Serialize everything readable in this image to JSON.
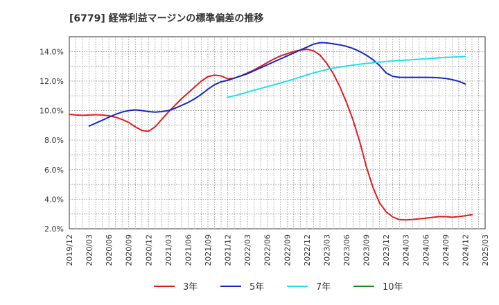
{
  "chart_data": {
    "type": "line",
    "title": "[6779]  経常利益マージンの標準偏差の推移",
    "xlabel": "",
    "ylabel": "",
    "ylim": [
      2.0,
      15.0
    ],
    "y_ticks": [
      "2.0%",
      "4.0%",
      "6.0%",
      "8.0%",
      "10.0%",
      "12.0%",
      "14.0%"
    ],
    "y_tick_values": [
      2,
      4,
      6,
      8,
      10,
      12,
      14
    ],
    "x_ticks": [
      "2019/12",
      "2020/03",
      "2020/06",
      "2020/09",
      "2020/12",
      "2021/03",
      "2021/06",
      "2021/09",
      "2021/12",
      "2022/03",
      "2022/06",
      "2022/09",
      "2022/12",
      "2023/03",
      "2023/06",
      "2023/09",
      "2023/12",
      "2024/03",
      "2024/06",
      "2024/09",
      "2024/12",
      "2025/03"
    ],
    "grid": true,
    "legend_position": "bottom",
    "series": [
      {
        "name": "3年",
        "color": "#e31a1c",
        "points": [
          [
            "2019/12",
            9.75
          ],
          [
            "2020/01",
            9.7
          ],
          [
            "2020/02",
            9.68
          ],
          [
            "2020/03",
            9.7
          ],
          [
            "2020/04",
            9.72
          ],
          [
            "2020/05",
            9.7
          ],
          [
            "2020/06",
            9.65
          ],
          [
            "2020/07",
            9.55
          ],
          [
            "2020/08",
            9.4
          ],
          [
            "2020/09",
            9.2
          ],
          [
            "2020/10",
            8.9
          ],
          [
            "2020/11",
            8.65
          ],
          [
            "2020/12",
            8.6
          ],
          [
            "2021/01",
            8.9
          ],
          [
            "2021/02",
            9.4
          ],
          [
            "2021/03",
            9.9
          ],
          [
            "2021/04",
            10.35
          ],
          [
            "2021/05",
            10.8
          ],
          [
            "2021/06",
            11.2
          ],
          [
            "2021/07",
            11.6
          ],
          [
            "2021/08",
            12.0
          ],
          [
            "2021/09",
            12.3
          ],
          [
            "2021/10",
            12.4
          ],
          [
            "2021/11",
            12.35
          ],
          [
            "2021/12",
            12.15
          ],
          [
            "2022/01",
            12.2
          ],
          [
            "2022/02",
            12.35
          ],
          [
            "2022/03",
            12.55
          ],
          [
            "2022/04",
            12.75
          ],
          [
            "2022/05",
            13.0
          ],
          [
            "2022/06",
            13.25
          ],
          [
            "2022/07",
            13.5
          ],
          [
            "2022/08",
            13.7
          ],
          [
            "2022/09",
            13.85
          ],
          [
            "2022/10",
            14.0
          ],
          [
            "2022/11",
            14.1
          ],
          [
            "2022/12",
            14.15
          ],
          [
            "2023/01",
            14.05
          ],
          [
            "2023/02",
            13.75
          ],
          [
            "2023/03",
            13.2
          ],
          [
            "2023/04",
            12.5
          ],
          [
            "2023/05",
            11.6
          ],
          [
            "2023/06",
            10.55
          ],
          [
            "2023/07",
            9.35
          ],
          [
            "2023/08",
            7.9
          ],
          [
            "2023/09",
            6.2
          ],
          [
            "2023/10",
            4.8
          ],
          [
            "2023/11",
            3.75
          ],
          [
            "2023/12",
            3.15
          ],
          [
            "2024/01",
            2.8
          ],
          [
            "2024/02",
            2.62
          ],
          [
            "2024/03",
            2.6
          ],
          [
            "2024/04",
            2.63
          ],
          [
            "2024/05",
            2.67
          ],
          [
            "2024/06",
            2.72
          ],
          [
            "2024/07",
            2.77
          ],
          [
            "2024/08",
            2.82
          ],
          [
            "2024/09",
            2.82
          ],
          [
            "2024/10",
            2.78
          ],
          [
            "2024/11",
            2.82
          ],
          [
            "2024/12",
            2.88
          ],
          [
            "2025/01",
            2.95
          ]
        ]
      },
      {
        "name": "5年",
        "color": "#1428c8",
        "points": [
          [
            "2020/03",
            8.95
          ],
          [
            "2020/04",
            9.15
          ],
          [
            "2020/05",
            9.35
          ],
          [
            "2020/06",
            9.55
          ],
          [
            "2020/07",
            9.75
          ],
          [
            "2020/08",
            9.9
          ],
          [
            "2020/09",
            10.0
          ],
          [
            "2020/10",
            10.05
          ],
          [
            "2020/11",
            10.0
          ],
          [
            "2020/12",
            9.93
          ],
          [
            "2021/01",
            9.9
          ],
          [
            "2021/02",
            9.93
          ],
          [
            "2021/03",
            10.0
          ],
          [
            "2021/04",
            10.15
          ],
          [
            "2021/05",
            10.35
          ],
          [
            "2021/06",
            10.55
          ],
          [
            "2021/07",
            10.8
          ],
          [
            "2021/08",
            11.1
          ],
          [
            "2021/09",
            11.45
          ],
          [
            "2021/10",
            11.75
          ],
          [
            "2021/11",
            11.95
          ],
          [
            "2021/12",
            12.05
          ],
          [
            "2022/01",
            12.2
          ],
          [
            "2022/02",
            12.35
          ],
          [
            "2022/03",
            12.5
          ],
          [
            "2022/04",
            12.7
          ],
          [
            "2022/05",
            12.9
          ],
          [
            "2022/06",
            13.1
          ],
          [
            "2022/07",
            13.3
          ],
          [
            "2022/08",
            13.5
          ],
          [
            "2022/09",
            13.7
          ],
          [
            "2022/10",
            13.9
          ],
          [
            "2022/11",
            14.1
          ],
          [
            "2022/12",
            14.3
          ],
          [
            "2023/01",
            14.5
          ],
          [
            "2023/02",
            14.6
          ],
          [
            "2023/03",
            14.58
          ],
          [
            "2023/04",
            14.52
          ],
          [
            "2023/05",
            14.45
          ],
          [
            "2023/06",
            14.35
          ],
          [
            "2023/07",
            14.2
          ],
          [
            "2023/08",
            14.0
          ],
          [
            "2023/09",
            13.75
          ],
          [
            "2023/10",
            13.45
          ],
          [
            "2023/11",
            13.05
          ],
          [
            "2023/12",
            12.55
          ],
          [
            "2024/01",
            12.32
          ],
          [
            "2024/02",
            12.25
          ],
          [
            "2024/03",
            12.25
          ],
          [
            "2024/04",
            12.25
          ],
          [
            "2024/05",
            12.25
          ],
          [
            "2024/06",
            12.25
          ],
          [
            "2024/07",
            12.24
          ],
          [
            "2024/08",
            12.22
          ],
          [
            "2024/09",
            12.18
          ],
          [
            "2024/10",
            12.1
          ],
          [
            "2024/11",
            11.98
          ],
          [
            "2024/12",
            11.8
          ]
        ]
      },
      {
        "name": "7年",
        "color": "#20e0f0",
        "points": [
          [
            "2021/12",
            10.9
          ],
          [
            "2022/01",
            11.0
          ],
          [
            "2022/02",
            11.12
          ],
          [
            "2022/03",
            11.25
          ],
          [
            "2022/04",
            11.38
          ],
          [
            "2022/05",
            11.5
          ],
          [
            "2022/06",
            11.62
          ],
          [
            "2022/07",
            11.75
          ],
          [
            "2022/08",
            11.87
          ],
          [
            "2022/09",
            12.0
          ],
          [
            "2022/10",
            12.13
          ],
          [
            "2022/11",
            12.27
          ],
          [
            "2022/12",
            12.42
          ],
          [
            "2023/01",
            12.55
          ],
          [
            "2023/02",
            12.67
          ],
          [
            "2023/03",
            12.78
          ],
          [
            "2023/04",
            12.88
          ],
          [
            "2023/05",
            12.95
          ],
          [
            "2023/06",
            13.02
          ],
          [
            "2023/07",
            13.08
          ],
          [
            "2023/08",
            13.14
          ],
          [
            "2023/09",
            13.19
          ],
          [
            "2023/10",
            13.24
          ],
          [
            "2023/11",
            13.28
          ],
          [
            "2023/12",
            13.32
          ],
          [
            "2024/01",
            13.36
          ],
          [
            "2024/02",
            13.39
          ],
          [
            "2024/03",
            13.42
          ],
          [
            "2024/04",
            13.45
          ],
          [
            "2024/05",
            13.48
          ],
          [
            "2024/06",
            13.51
          ],
          [
            "2024/07",
            13.54
          ],
          [
            "2024/08",
            13.57
          ],
          [
            "2024/09",
            13.6
          ],
          [
            "2024/10",
            13.62
          ],
          [
            "2024/11",
            13.64
          ],
          [
            "2024/12",
            13.66
          ]
        ]
      },
      {
        "name": "10年",
        "color": "#1a8c1a",
        "points": []
      }
    ]
  }
}
